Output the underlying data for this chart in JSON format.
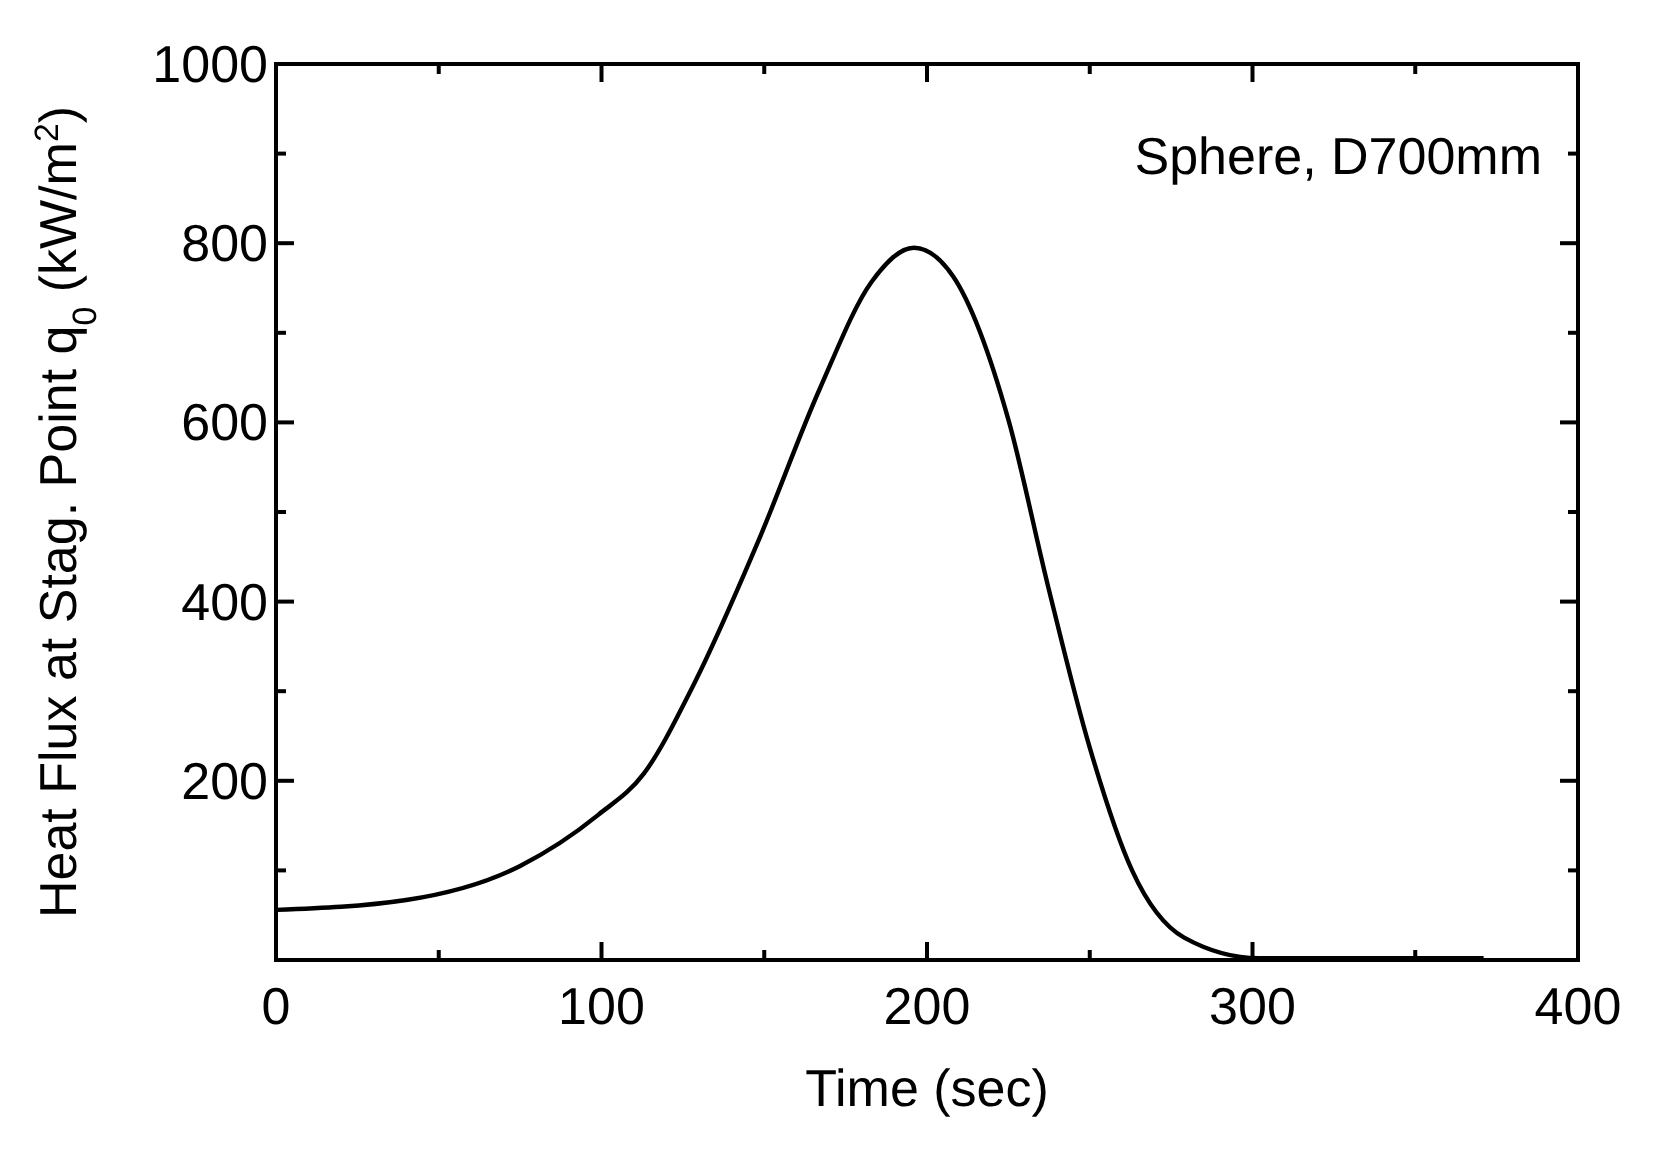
{
  "chart_data": {
    "type": "line",
    "xlabel": "Time  (sec)",
    "ylabel": "Heat Flux at Stag. Point  q$_{0}$ (kW/m$^{2}$)",
    "annotations": [
      "Sphere, D700mm"
    ],
    "xlim": [
      0,
      400
    ],
    "ylim": [
      0,
      1000
    ],
    "xticks": [
      0,
      {
        "value": 50,
        "label": null
      },
      100,
      {
        "value": 150,
        "label": null
      },
      200,
      {
        "value": 250,
        "label": null
      },
      300,
      {
        "value": 350,
        "label": null
      },
      400
    ],
    "yticks": [
      {
        "value": 0,
        "label": null
      },
      {
        "value": 100,
        "label": null
      },
      200,
      {
        "value": 300,
        "label": null
      },
      400,
      {
        "value": 500,
        "label": null
      },
      600,
      {
        "value": 700,
        "label": null
      },
      800,
      {
        "value": 900,
        "label": null
      },
      1000
    ],
    "grid": false,
    "marker": "none",
    "line_style": "solid",
    "series": [
      {
        "color": "#000000",
        "x": [
          0,
          40,
          75,
          99,
          113,
          128,
          148,
          167,
          183,
          196,
          208,
          225,
          237,
          250,
          263,
          279,
          302,
          371
        ],
        "values": [
          56,
          67,
          105,
          162,
          208,
          305,
          466,
          637,
          757,
          795,
          763,
          603,
          420,
          237,
          100,
          25,
          2,
          2
        ]
      }
    ]
  }
}
